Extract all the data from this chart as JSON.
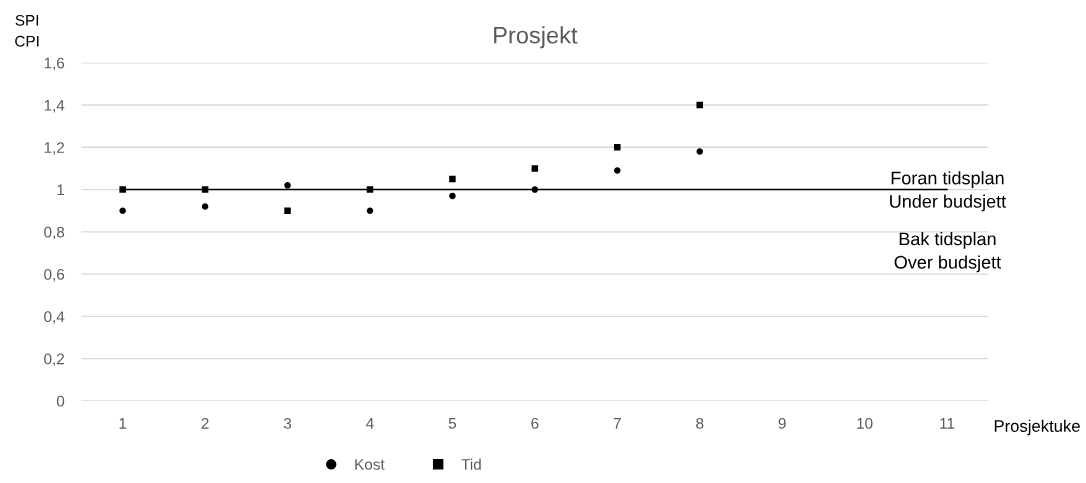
{
  "chart_data": {
    "type": "scatter",
    "title": "Prosjekt",
    "xlabel": "Prosjektuke",
    "ylabel": "SPI\nCPI",
    "categories": [
      "1",
      "2",
      "3",
      "4",
      "5",
      "6",
      "7",
      "8",
      "9",
      "10",
      "11"
    ],
    "series": [
      {
        "name": "Kost",
        "color": "#000000",
        "marker": "circle",
        "values": [
          0.9,
          0.92,
          1.02,
          0.9,
          0.97,
          1.0,
          1.09,
          1.18,
          null,
          null,
          null
        ]
      },
      {
        "name": "Tid",
        "color": "#000000",
        "marker": "square",
        "values": [
          1.0,
          1.0,
          0.9,
          1.0,
          1.05,
          1.1,
          1.2,
          1.4,
          null,
          null,
          null
        ]
      }
    ],
    "ylim": [
      0,
      1.6
    ],
    "yticks": [
      0,
      {
        "value": 0.2,
        "label": "0,2"
      },
      {
        "value": 0.4,
        "label": "0,4"
      },
      {
        "value": 0.6,
        "label": "0,6"
      },
      {
        "value": 0.8,
        "label": "0,8"
      },
      1,
      {
        "value": 1.2,
        "label": "1,2"
      },
      {
        "value": 1.4,
        "label": "1,4"
      },
      {
        "value": 1.6,
        "label": "1,6"
      }
    ],
    "grid": "y",
    "legend": "bottom",
    "ref_lines": [
      {
        "axis": "y",
        "value": 1,
        "color": "#000000"
      }
    ],
    "annotations": [
      "Foran tidsplan\nUnder budsjett",
      "Bak tidsplan\nOver budsjett"
    ]
  }
}
